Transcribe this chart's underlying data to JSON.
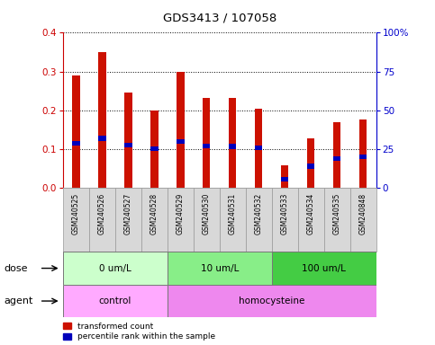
{
  "title": "GDS3413 / 107058",
  "samples": [
    "GSM240525",
    "GSM240526",
    "GSM240527",
    "GSM240528",
    "GSM240529",
    "GSM240530",
    "GSM240531",
    "GSM240532",
    "GSM240533",
    "GSM240534",
    "GSM240535",
    "GSM240848"
  ],
  "transformed_count": [
    0.29,
    0.35,
    0.245,
    0.2,
    0.3,
    0.233,
    0.232,
    0.205,
    0.058,
    0.128,
    0.17,
    0.177
  ],
  "percentile_rank_left": [
    0.11,
    0.122,
    0.104,
    0.096,
    0.114,
    0.102,
    0.101,
    0.097,
    0.016,
    0.05,
    0.069,
    0.074
  ],
  "percentile_rank_height": [
    0.012,
    0.012,
    0.012,
    0.012,
    0.012,
    0.012,
    0.012,
    0.012,
    0.012,
    0.012,
    0.012,
    0.012
  ],
  "bar_color": "#cc1100",
  "percentile_color": "#0000bb",
  "ylim_left": [
    0,
    0.4
  ],
  "ylim_right": [
    0,
    100
  ],
  "yticks_left": [
    0,
    0.1,
    0.2,
    0.3,
    0.4
  ],
  "yticks_right": [
    0,
    25,
    50,
    75,
    100
  ],
  "ytick_labels_right": [
    "0",
    "25",
    "50",
    "75",
    "100%"
  ],
  "dose_groups": [
    {
      "label": "0 um/L",
      "start": 0,
      "end": 4,
      "color": "#ccffcc"
    },
    {
      "label": "10 um/L",
      "start": 4,
      "end": 8,
      "color": "#88ee88"
    },
    {
      "label": "100 um/L",
      "start": 8,
      "end": 12,
      "color": "#44cc44"
    }
  ],
  "agent_groups": [
    {
      "label": "control",
      "start": 0,
      "end": 4,
      "color": "#ffaaff"
    },
    {
      "label": "homocysteine",
      "start": 4,
      "end": 12,
      "color": "#ee88ee"
    }
  ],
  "dose_label": "dose",
  "agent_label": "agent",
  "legend_red": "transformed count",
  "legend_blue": "percentile rank within the sample",
  "bar_width": 0.28,
  "blue_bar_width": 0.28,
  "tick_color_left": "#cc0000",
  "tick_color_right": "#0000cc"
}
